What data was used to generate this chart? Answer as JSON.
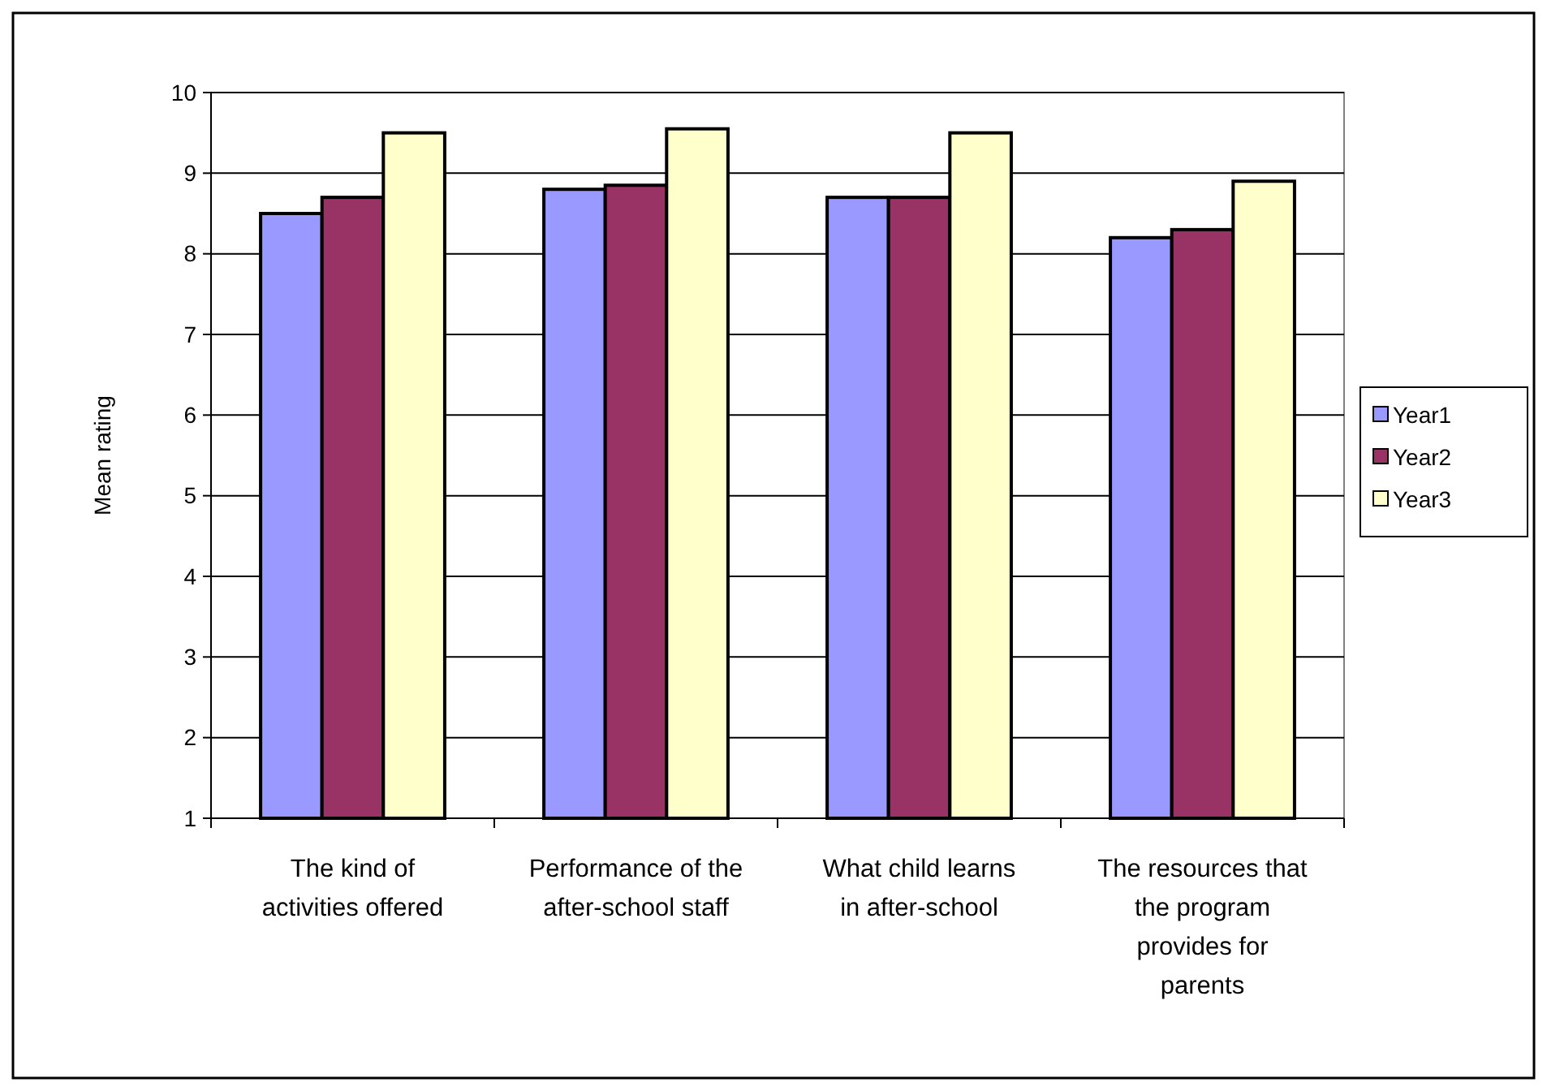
{
  "chart_data": {
    "type": "bar",
    "ylabel": "Mean rating",
    "categories": [
      "The kind of activities offered",
      "Performance of the after-school staff",
      "What child learns in after-school",
      "The resources that the program provides for parents"
    ],
    "series": [
      {
        "name": "Year1",
        "color": "#9999ff",
        "values": [
          8.5,
          8.8,
          8.7,
          8.2
        ]
      },
      {
        "name": "Year2",
        "color": "#993366",
        "values": [
          8.7,
          8.85,
          8.7,
          8.3
        ]
      },
      {
        "name": "Year3",
        "color": "#ffffcc",
        "values": [
          9.5,
          9.55,
          9.5,
          8.9
        ]
      }
    ],
    "ylim": [
      1,
      10
    ],
    "yticks": [
      1,
      2,
      3,
      4,
      5,
      6,
      7,
      8,
      9,
      10
    ],
    "grid": "y",
    "legend": "right"
  }
}
